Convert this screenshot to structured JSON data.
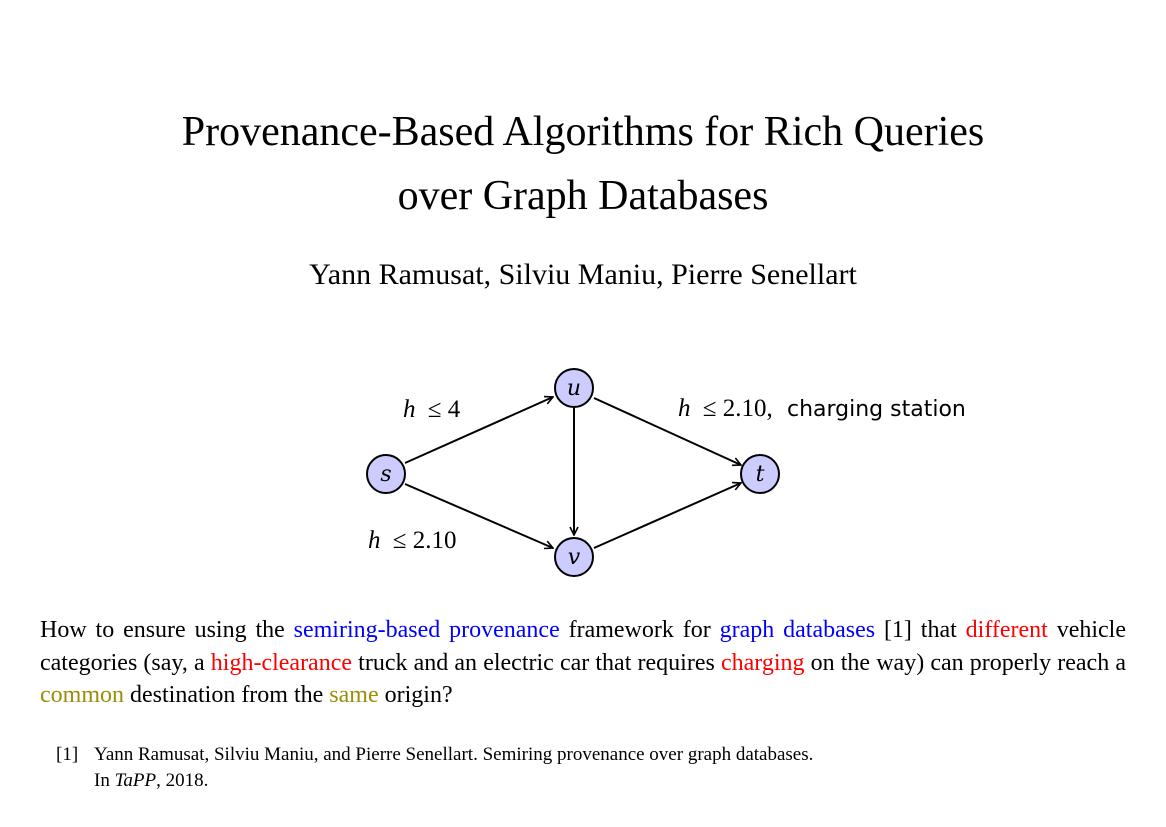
{
  "title": {
    "line1": "Provenance-Based Algorithms for Rich Queries",
    "line2": "over Graph Databases"
  },
  "authors": "Yann Ramusat, Silviu Maniu, Pierre Senellart",
  "graph": {
    "node_fill": "#ccccff",
    "nodes": {
      "s": "s",
      "u": "u",
      "v": "v",
      "t": "t"
    },
    "edge_labels": {
      "s_u": {
        "var": "h",
        "rel": "≤ 4"
      },
      "s_v": {
        "var": "h",
        "rel": "≤ 2.10"
      },
      "u_t": {
        "var": "h",
        "rel": "≤ 2.10,",
        "extra": "charging station"
      }
    }
  },
  "body": {
    "seg1": "How to ensure using the ",
    "seg2": "semiring-based provenance",
    "seg3": " framework for ",
    "seg4": "graph databases",
    "seg5": " [1] that ",
    "seg6": "different",
    "seg7": " vehicle categories (say, a ",
    "seg8": "high-clearance",
    "seg9": " truck and an electric car that requires ",
    "seg10": "charging",
    "seg11": " on the way) can properly reach a ",
    "seg12": "common",
    "seg13": " destination from the ",
    "seg14": "same",
    "seg15": " origin?"
  },
  "reference": {
    "num": "[1]",
    "text_a": "Yann Ramusat, Silviu Maniu, and Pierre Senellart. Semiring provenance over graph databases.",
    "text_b": "In ",
    "venue": "TaPP",
    "text_c": ", 2018."
  }
}
